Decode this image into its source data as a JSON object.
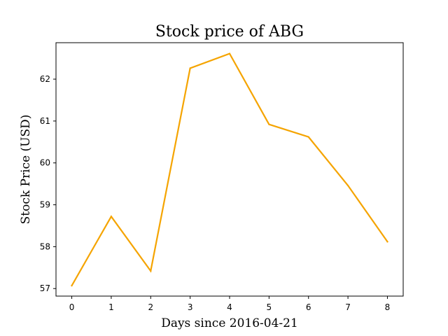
{
  "chart_data": {
    "type": "line",
    "title": "Stock price of ABG",
    "xlabel": "Days since 2016-04-21",
    "ylabel": "Stock Price (USD)",
    "x": [
      0,
      1,
      2,
      3,
      4,
      5,
      6,
      7,
      8
    ],
    "series": [
      {
        "values": [
          57.07,
          58.72,
          57.42,
          62.26,
          62.61,
          60.92,
          60.62,
          59.46,
          58.12
        ],
        "color": "#f5a400"
      }
    ],
    "xlim": [
      -0.4,
      8.4
    ],
    "ylim": [
      56.82,
      62.87
    ],
    "xticks": [
      0,
      1,
      2,
      3,
      4,
      5,
      6,
      7,
      8
    ],
    "yticks": [
      57,
      58,
      59,
      60,
      61,
      62
    ],
    "grid": false,
    "legend": "none"
  }
}
